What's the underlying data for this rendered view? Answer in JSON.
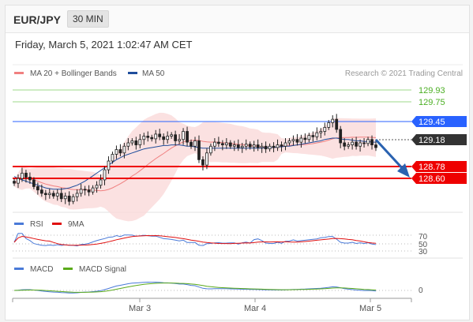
{
  "header": {
    "pair": "EUR/JPY",
    "timeframe": "30 MIN",
    "datetime": "Friday, March 5, 2021 1:02:47 AM CET"
  },
  "main_legend": {
    "items": [
      {
        "label": "MA 20 + Bollinger Bands",
        "color": "#f08080"
      },
      {
        "label": "MA 50",
        "color": "#1f4e9c"
      }
    ],
    "credit": "Research © 2021 Trading Central"
  },
  "levels": [
    {
      "value": "129.93",
      "kind": "target",
      "color": "#4caf24"
    },
    {
      "value": "129.75",
      "kind": "target",
      "color": "#4caf24"
    },
    {
      "value": "129.45",
      "kind": "pivot",
      "color": "#2962ff"
    },
    {
      "value": "129.18",
      "kind": "current",
      "color": "#333333"
    },
    {
      "value": "128.78",
      "kind": "support",
      "color": "#ee0000"
    },
    {
      "value": "128.60",
      "kind": "support",
      "color": "#ee0000"
    }
  ],
  "rsi_panel": {
    "legend": [
      {
        "label": "RSI",
        "color": "#4a7ad8"
      },
      {
        "label": "9MA",
        "color": "#e01010"
      }
    ],
    "levels": [
      "70",
      "50",
      "30"
    ]
  },
  "macd_panel": {
    "legend": [
      {
        "label": "MACD",
        "color": "#4a7ad8"
      },
      {
        "label": "MACD Signal",
        "color": "#5aaa1a"
      }
    ],
    "levels": [
      "0"
    ]
  },
  "x_axis": {
    "labels": [
      "Mar 3",
      "Mar 4",
      "Mar 5"
    ]
  },
  "chart_data": {
    "type": "candlestick",
    "y_range": [
      128.3,
      130.2
    ],
    "close": [
      128.65,
      128.72,
      128.8,
      128.74,
      128.7,
      128.6,
      128.55,
      128.5,
      128.48,
      128.5,
      128.46,
      128.5,
      128.42,
      128.46,
      128.38,
      128.45,
      128.5,
      128.56,
      128.55,
      128.52,
      128.58,
      128.62,
      128.7,
      128.85,
      128.98,
      129.08,
      129.15,
      129.1,
      129.2,
      129.25,
      129.28,
      129.22,
      129.3,
      129.35,
      129.33,
      129.31,
      129.38,
      129.34,
      129.3,
      129.35,
      129.37,
      129.28,
      129.3,
      129.42,
      129.26,
      129.2,
      129.28,
      129.0,
      128.92,
      129.1,
      129.2,
      129.26,
      129.24,
      129.22,
      129.25,
      129.2,
      129.22,
      129.18,
      129.2,
      129.23,
      129.19,
      129.22,
      129.18,
      129.2,
      129.16,
      129.2,
      129.18,
      129.22,
      129.2,
      129.25,
      129.28,
      129.3,
      129.26,
      129.32,
      129.3,
      129.36,
      129.34,
      129.4,
      129.42,
      129.48,
      129.55,
      129.6,
      129.45,
      129.25,
      129.2,
      129.22,
      129.26,
      129.2,
      129.25,
      129.24,
      129.3,
      129.22,
      129.18
    ],
    "ma50": [
      128.75,
      128.72,
      128.7,
      128.68,
      128.66,
      128.64,
      128.62,
      128.6,
      128.58,
      128.57,
      128.56,
      128.56,
      128.56,
      128.57,
      128.58,
      128.6,
      128.62,
      128.65,
      128.68,
      128.72,
      128.76,
      128.8,
      128.84,
      128.88,
      128.92,
      128.96,
      129.0,
      129.03,
      129.06,
      129.08,
      129.1,
      129.12,
      129.14,
      129.16,
      129.17,
      129.18,
      129.19,
      129.2,
      129.21,
      129.21,
      129.22,
      129.22,
      129.22,
      129.21,
      129.2,
      129.2,
      129.19,
      129.18,
      129.17,
      129.17,
      129.17,
      129.17,
      129.17,
      129.17,
      129.17,
      129.17,
      129.17,
      129.17,
      129.17,
      129.17,
      129.17,
      129.17,
      129.17,
      129.17,
      129.18,
      129.18,
      129.18,
      129.19,
      129.19,
      129.2,
      129.2,
      129.21,
      129.22,
      129.23,
      129.24,
      129.25,
      129.26,
      129.27,
      129.28,
      129.3,
      129.31,
      129.32,
      129.32,
      129.31,
      129.3,
      129.3,
      129.29,
      129.28,
      129.28,
      129.27,
      129.27,
      129.26,
      129.26
    ],
    "rsi_range": [
      20,
      80
    ],
    "macd_range": [
      -0.3,
      0.3
    ]
  }
}
